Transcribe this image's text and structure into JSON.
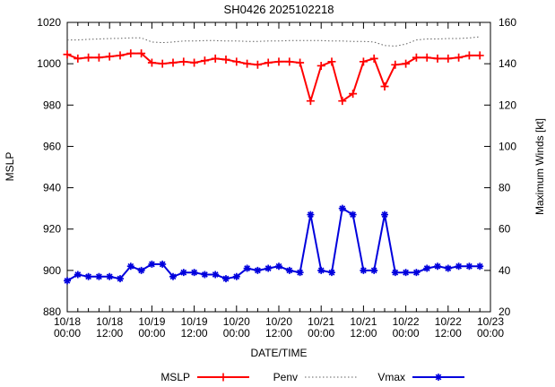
{
  "title": "SH0426 2025102218",
  "axes": {
    "x": {
      "label": "DATE/TIME",
      "tick_labels": [
        {
          "date": "10/18",
          "time": "00:00"
        },
        {
          "date": "10/18",
          "time": "12:00"
        },
        {
          "date": "10/19",
          "time": "00:00"
        },
        {
          "date": "10/19",
          "time": "12:00"
        },
        {
          "date": "10/20",
          "time": "00:00"
        },
        {
          "date": "10/20",
          "time": "12:00"
        },
        {
          "date": "10/21",
          "time": "00:00"
        },
        {
          "date": "10/21",
          "time": "12:00"
        },
        {
          "date": "10/22",
          "time": "00:00"
        },
        {
          "date": "10/22",
          "time": "12:00"
        },
        {
          "date": "10/23",
          "time": "00:00"
        }
      ],
      "major_step_hours": 12,
      "minor_step_hours": 3,
      "range_hours": 120
    },
    "y_left": {
      "label": "MSLP",
      "min": 880,
      "max": 1020,
      "ticks": [
        880,
        900,
        920,
        940,
        960,
        980,
        1000,
        1020
      ]
    },
    "y_right": {
      "label": "Maximum Winds [kt]",
      "min": 20,
      "max": 160,
      "ticks": [
        20,
        40,
        60,
        80,
        100,
        120,
        140,
        160
      ]
    }
  },
  "legend": [
    {
      "label": "MSLP",
      "color": "#ff0000",
      "style": "solid",
      "marker": "plus"
    },
    {
      "label": "Penv",
      "color": "#606060",
      "style": "dotted",
      "marker": "none"
    },
    {
      "label": "Vmax",
      "color": "#0000dd",
      "style": "solid",
      "marker": "star"
    }
  ],
  "colors": {
    "axis": "#000000",
    "background": "#ffffff"
  },
  "chart_data": {
    "type": "line",
    "title": "SH0426 2025102218",
    "xlabel": "DATE/TIME",
    "ylabel_left": "MSLP",
    "ylabel_right": "Maximum Winds [kt]",
    "xlim": [
      "10/18 00:00",
      "10/23 00:00"
    ],
    "ylim_left": [
      880,
      1020
    ],
    "ylim_right": [
      20,
      160
    ],
    "grid": false,
    "legend_position": "bottom-center",
    "x_step_hours": 3,
    "x_times": [
      "10/18 00:00",
      "10/18 03:00",
      "10/18 06:00",
      "10/18 09:00",
      "10/18 12:00",
      "10/18 15:00",
      "10/18 18:00",
      "10/18 21:00",
      "10/19 00:00",
      "10/19 03:00",
      "10/19 06:00",
      "10/19 09:00",
      "10/19 12:00",
      "10/19 15:00",
      "10/19 18:00",
      "10/19 21:00",
      "10/20 00:00",
      "10/20 03:00",
      "10/20 06:00",
      "10/20 09:00",
      "10/20 12:00",
      "10/20 15:00",
      "10/20 18:00",
      "10/20 21:00",
      "10/21 00:00",
      "10/21 03:00",
      "10/21 06:00",
      "10/21 09:00",
      "10/21 12:00",
      "10/21 15:00",
      "10/21 18:00",
      "10/21 21:00",
      "10/22 00:00",
      "10/22 03:00",
      "10/22 06:00",
      "10/22 09:00",
      "10/22 12:00",
      "10/22 15:00",
      "10/22 18:00",
      "10/22 21:00"
    ],
    "series": [
      {
        "name": "MSLP",
        "axis": "left",
        "color": "#ff0000",
        "style": "solid",
        "marker": "plus",
        "values": [
          1004.5,
          1002.5,
          1003,
          1003,
          1003.5,
          1004,
          1005,
          1005,
          1000.5,
          1000,
          1000.5,
          1001,
          1000.5,
          1001.5,
          1002.5,
          1002,
          1001,
          1000,
          999.5,
          1000.5,
          1001,
          1001,
          1000.5,
          982,
          999,
          1001,
          982,
          985.5,
          1001,
          1002.5,
          989,
          999.5,
          1000,
          1003,
          1003,
          1002.5,
          1002.5,
          1003,
          1004,
          1004
        ]
      },
      {
        "name": "Penv",
        "axis": "left",
        "color": "#606060",
        "style": "dotted",
        "marker": "none",
        "values": [
          1011.5,
          1011.5,
          1011.8,
          1012,
          1012.2,
          1012.3,
          1012.5,
          1012.5,
          1010.5,
          1010.2,
          1010.5,
          1011,
          1011,
          1011.2,
          1011.2,
          1011,
          1011,
          1010.8,
          1010.8,
          1011,
          1011,
          1011.2,
          1011.2,
          1011.2,
          1011.2,
          1011,
          1011,
          1010.8,
          1010.8,
          1010.5,
          1008.8,
          1008.5,
          1009.5,
          1011.5,
          1012,
          1012,
          1012.2,
          1012.2,
          1012.5,
          1013
        ]
      },
      {
        "name": "Vmax",
        "axis": "right",
        "color": "#0000dd",
        "style": "solid",
        "marker": "star",
        "values": [
          35,
          38,
          37,
          37,
          37,
          36,
          42,
          40,
          43,
          43,
          37,
          39,
          39,
          38,
          38,
          36,
          37,
          41,
          40,
          41,
          42,
          40,
          39,
          67,
          40,
          39,
          70,
          67,
          40,
          40,
          67,
          39,
          39,
          39,
          41,
          42,
          41,
          42,
          42,
          42
        ]
      }
    ]
  }
}
